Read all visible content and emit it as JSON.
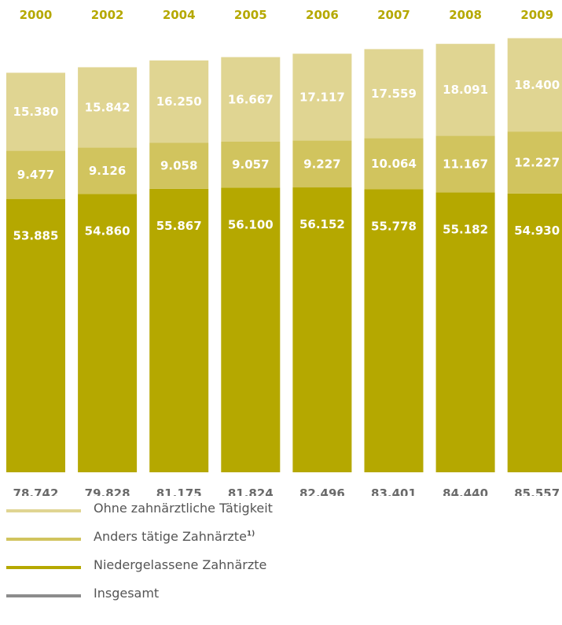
{
  "colors": {
    "niedergelassen": "#b5a800",
    "anders": "#d1c45e",
    "ohne": "#e0d592",
    "insgesamt": "#8c8c8c",
    "year_label": "#b5a800",
    "total_label": "#6a6a6a"
  },
  "chart_data": {
    "type": "bar",
    "stacked": true,
    "categories": [
      "2000",
      "2002",
      "2004",
      "2005",
      "2006",
      "2007",
      "2008",
      "2009"
    ],
    "series": [
      {
        "name": "Niedergelassene Zahnärzte",
        "values": [
          53885,
          54860,
          55867,
          56100,
          56152,
          55778,
          55182,
          54930
        ],
        "labels": [
          "53.885",
          "54.860",
          "55.867",
          "56.100",
          "56.152",
          "55.778",
          "55.182",
          "54.930"
        ]
      },
      {
        "name": "Anders tätige Zahnärzte",
        "values": [
          9477,
          9126,
          9058,
          9057,
          9227,
          10064,
          11167,
          12227
        ],
        "labels": [
          "9.477",
          "9.126",
          "9.058",
          "9.057",
          "9.227",
          "10.064",
          "11.167",
          "12.227"
        ]
      },
      {
        "name": "Ohne zahnärztliche Tätigkeit",
        "values": [
          15380,
          15842,
          16250,
          16667,
          17117,
          17559,
          18091,
          18400
        ],
        "labels": [
          "15.380",
          "15.842",
          "16.250",
          "16.667",
          "17.117",
          "17.559",
          "18.091",
          "18.400"
        ]
      }
    ],
    "totals": {
      "name": "Insgesamt",
      "values": [
        78742,
        79828,
        81175,
        81824,
        82496,
        83401,
        84440,
        85557
      ],
      "labels": [
        "78.742",
        "79.828",
        "81.175",
        "81.824",
        "82.496",
        "83.401",
        "84.440",
        "85.557"
      ]
    },
    "legend_placement": "bottom",
    "grid": false
  },
  "legend": [
    {
      "label": "Ohne zahnärztliche Tätigkeit",
      "sup": "",
      "color": "#e0d592"
    },
    {
      "label": "Anders tätige Zahnärzte",
      "sup": "1)",
      "color": "#d1c45e"
    },
    {
      "label": "Niedergelassene Zahnärzte",
      "sup": "",
      "color": "#b5a800"
    },
    {
      "label": "Insgesamt",
      "sup": "",
      "color": "#8c8c8c"
    }
  ]
}
